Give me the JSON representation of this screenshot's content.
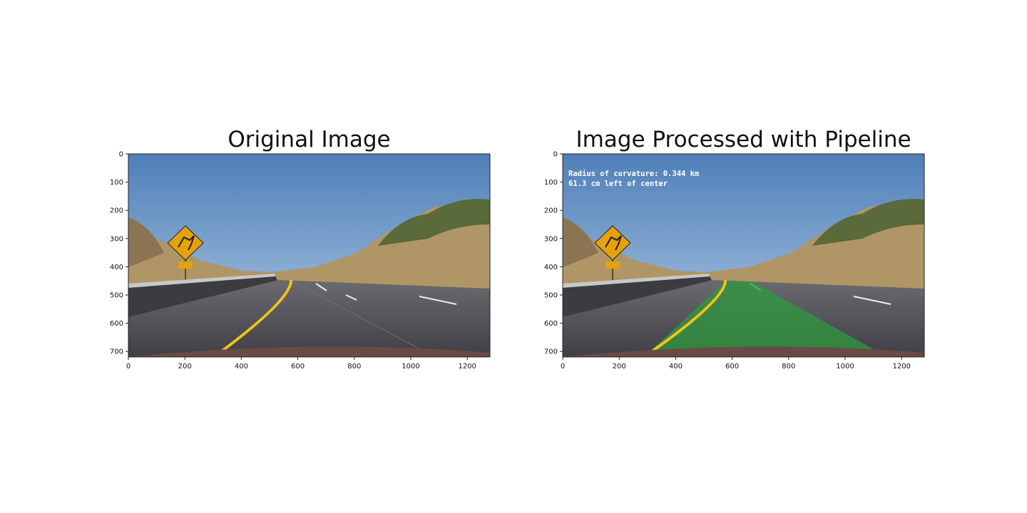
{
  "panels": [
    {
      "title": "Original Image",
      "x_ticks": [
        "0",
        "200",
        "400",
        "600",
        "800",
        "1000",
        "1200"
      ],
      "y_ticks": [
        "0",
        "100",
        "200",
        "300",
        "400",
        "500",
        "600",
        "700"
      ]
    },
    {
      "title": "Image Processed with Pipeline",
      "x_ticks": [
        "0",
        "200",
        "400",
        "600",
        "800",
        "1000",
        "1200"
      ],
      "y_ticks": [
        "0",
        "100",
        "200",
        "300",
        "400",
        "500",
        "600",
        "700"
      ],
      "overlay": {
        "line1": "Radius of curvature:  0.344 km",
        "line2": "61.3 cm left of center"
      }
    }
  ],
  "colors": {
    "sky_top": "#4f7fb8",
    "sky_bottom": "#a9c6e3",
    "road": "#4a4a50",
    "hill": "#b09566",
    "lane_fill": "#2f9a3d",
    "yellow_line": "#f2c21a",
    "sign": "#e6a10f"
  }
}
